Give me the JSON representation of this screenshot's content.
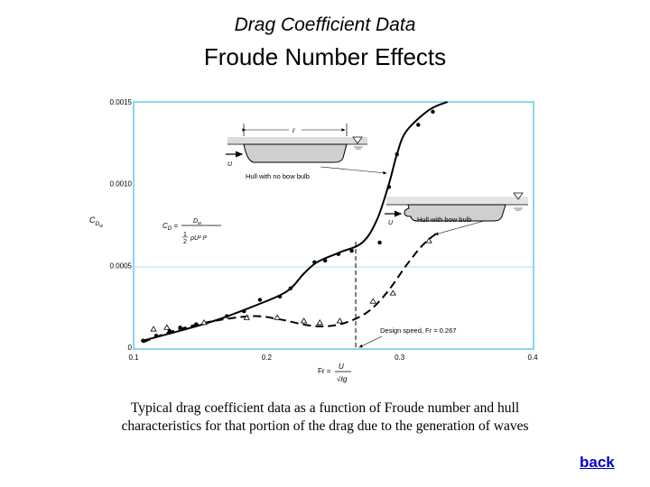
{
  "slide": {
    "title": "Drag Coefficient Data",
    "heading": "Froude Number Effects",
    "caption_line1": "Typical drag coefficient data as a function of Froude number and hull",
    "caption_line2": "characteristics for that portion of the drag due to the generation of waves",
    "back_label": "back"
  },
  "chart_data": {
    "type": "line",
    "title": "",
    "xlabel": "Fr = U/√(ℓg)",
    "ylabel": "C_Dw",
    "xlim": [
      0.1,
      0.4
    ],
    "ylim": [
      0,
      0.0015
    ],
    "x_ticks": [
      "0.1",
      "0.2",
      "0.3",
      "0.4"
    ],
    "y_ticks": [
      "0",
      "0.0005",
      "0.0010",
      "0.0015"
    ],
    "grid": false,
    "series": [
      {
        "name": "Hull with no bow bulb",
        "line": "solid",
        "marker": "dot",
        "curve": [
          [
            0.107,
            4e-05
          ],
          [
            0.13,
            9e-05
          ],
          [
            0.16,
            0.00016
          ],
          [
            0.19,
            0.00025
          ],
          [
            0.215,
            0.00034
          ],
          [
            0.228,
            0.00045
          ],
          [
            0.238,
            0.00052
          ],
          [
            0.255,
            0.00058
          ],
          [
            0.272,
            0.00064
          ],
          [
            0.283,
            0.00078
          ],
          [
            0.292,
            0.001
          ],
          [
            0.298,
            0.00118
          ],
          [
            0.305,
            0.00132
          ],
          [
            0.322,
            0.00145
          ],
          [
            0.336,
            0.0015
          ]
        ],
        "points": [
          [
            0.107,
            4e-05
          ],
          [
            0.117,
            7e-05
          ],
          [
            0.127,
            0.0001
          ],
          [
            0.135,
            0.00012
          ],
          [
            0.147,
            0.00014
          ],
          [
            0.17,
            0.00019
          ],
          [
            0.183,
            0.00022
          ],
          [
            0.195,
            0.00029
          ],
          [
            0.21,
            0.00031
          ],
          [
            0.218,
            0.00036
          ],
          [
            0.236,
            0.00052
          ],
          [
            0.244,
            0.00053
          ],
          [
            0.254,
            0.00057
          ],
          [
            0.264,
            0.00059
          ],
          [
            0.285,
            0.00064
          ],
          [
            0.292,
            0.00098
          ],
          [
            0.298,
            0.00118
          ],
          [
            0.314,
            0.00136
          ],
          [
            0.325,
            0.00144
          ]
        ]
      },
      {
        "name": "Hull with bow bulb",
        "line": "dashed",
        "marker": "triangle",
        "curve": [
          [
            0.107,
            3e-05
          ],
          [
            0.13,
            0.0001
          ],
          [
            0.16,
            0.00016
          ],
          [
            0.19,
            0.00019
          ],
          [
            0.21,
            0.00017
          ],
          [
            0.235,
            0.00013
          ],
          [
            0.255,
            0.00014
          ],
          [
            0.275,
            0.00021
          ],
          [
            0.29,
            0.00033
          ],
          [
            0.305,
            0.0005
          ],
          [
            0.318,
            0.00063
          ],
          [
            0.33,
            0.00071
          ]
        ],
        "points": [
          [
            0.115,
            0.00011
          ],
          [
            0.125,
            0.00012
          ],
          [
            0.153,
            0.00015
          ],
          [
            0.185,
            0.00018
          ],
          [
            0.208,
            0.00018
          ],
          [
            0.228,
            0.00016
          ],
          [
            0.24,
            0.00015
          ],
          [
            0.255,
            0.00016
          ],
          [
            0.28,
            0.00028
          ],
          [
            0.295,
            0.00033
          ],
          [
            0.322,
            0.00065
          ]
        ]
      }
    ],
    "annotations": {
      "formula": "C_D = D_w / (½ρU²ℓ²)",
      "design_speed": "Design speed, Fr = 0.267",
      "design_speed_x": 0.267,
      "hull_no_bulb_label": "Hull with no bow bulb",
      "hull_bulb_label": "Hull with bow bulb",
      "length_symbol": "ℓ",
      "velocity_symbol": "U"
    }
  }
}
